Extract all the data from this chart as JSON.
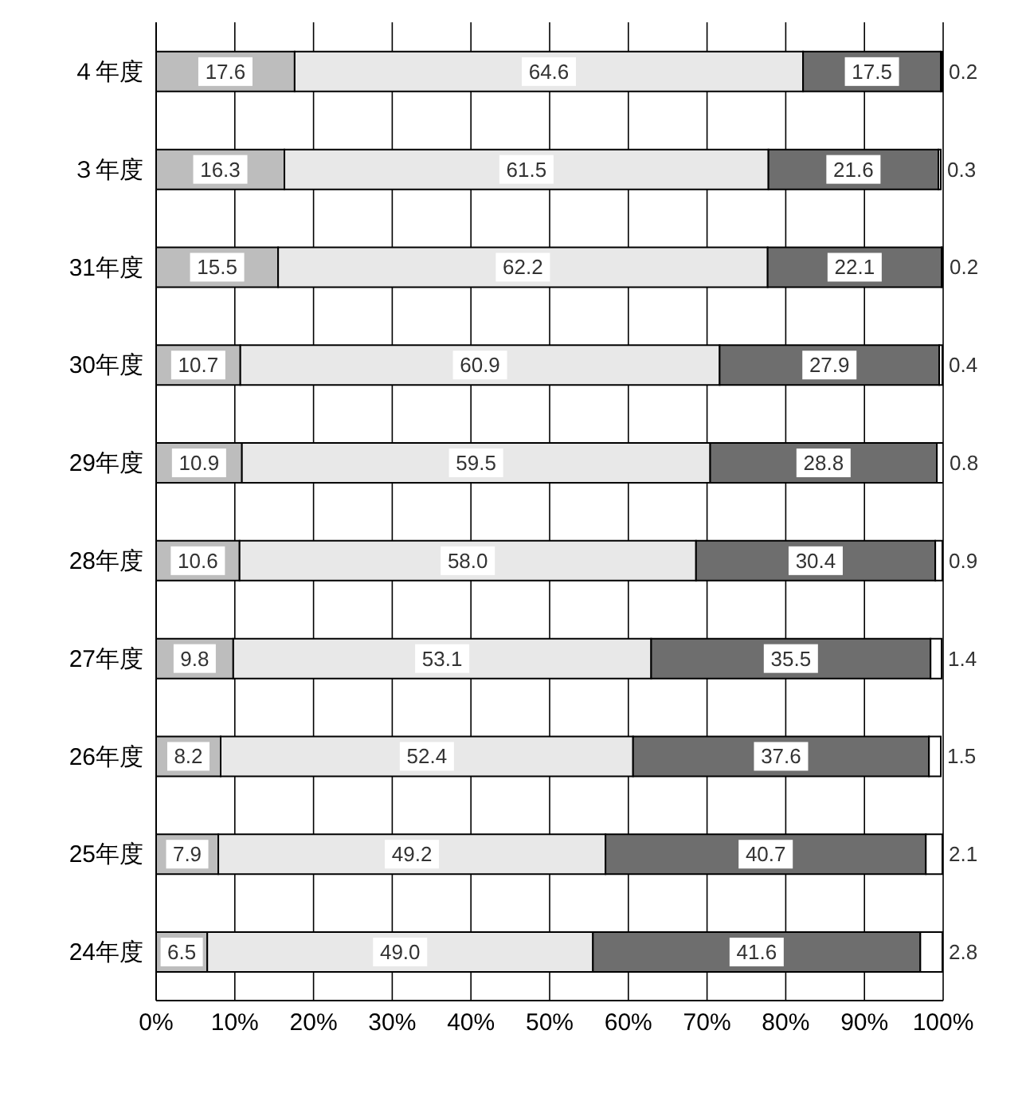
{
  "chart_data": {
    "type": "bar",
    "orientation": "horizontal",
    "stacked": true,
    "grid": "x",
    "legend": false,
    "categories": [
      "４年度",
      "３年度",
      "31年度",
      "30年度",
      "29年度",
      "28年度",
      "27年度",
      "26年度",
      "25年度",
      "24年度"
    ],
    "series": [
      {
        "color": "#bdbdbd",
        "values": [
          17.6,
          16.3,
          15.5,
          10.7,
          10.9,
          10.6,
          9.8,
          8.2,
          7.9,
          6.5
        ],
        "value_labels": [
          "17.6",
          "16.3",
          "15.5",
          "10.7",
          "10.9",
          "10.6",
          "9.8",
          "8.2",
          "7.9",
          "6.5"
        ]
      },
      {
        "color": "#e8e8e8",
        "values": [
          64.6,
          61.5,
          62.2,
          60.9,
          59.5,
          58.0,
          53.1,
          52.4,
          49.2,
          49.0
        ],
        "value_labels": [
          "64.6",
          "61.5",
          "62.2",
          "60.9",
          "59.5",
          "58.0",
          "53.1",
          "52.4",
          "49.2",
          "49.0"
        ]
      },
      {
        "color": "#6e6e6e",
        "values": [
          17.5,
          21.6,
          22.1,
          27.9,
          28.8,
          30.4,
          35.5,
          37.6,
          40.7,
          41.6
        ],
        "value_labels": [
          "17.5",
          "21.6",
          "22.1",
          "27.9",
          "28.8",
          "30.4",
          "35.5",
          "37.6",
          "40.7",
          "41.6"
        ]
      },
      {
        "color": "#ffffff",
        "values": [
          0.2,
          0.3,
          0.2,
          0.4,
          0.8,
          0.9,
          1.4,
          1.5,
          2.1,
          2.8
        ],
        "value_labels": [
          "0.2",
          "0.3",
          "0.2",
          "0.4",
          "0.8",
          "0.9",
          "1.4",
          "1.5",
          "2.1",
          "2.8"
        ]
      }
    ],
    "xlim": [
      0,
      100
    ],
    "xticks": [
      {
        "value": 0,
        "label": "0%"
      },
      {
        "value": 10,
        "label": "10%"
      },
      {
        "value": 20,
        "label": "20%"
      },
      {
        "value": 30,
        "label": "30%"
      },
      {
        "value": 40,
        "label": "40%"
      },
      {
        "value": 50,
        "label": "50%"
      },
      {
        "value": 60,
        "label": "60%"
      },
      {
        "value": 70,
        "label": "70%"
      },
      {
        "value": 80,
        "label": "80%"
      },
      {
        "value": 90,
        "label": "90%"
      },
      {
        "value": 100,
        "label": "100%"
      }
    ]
  }
}
